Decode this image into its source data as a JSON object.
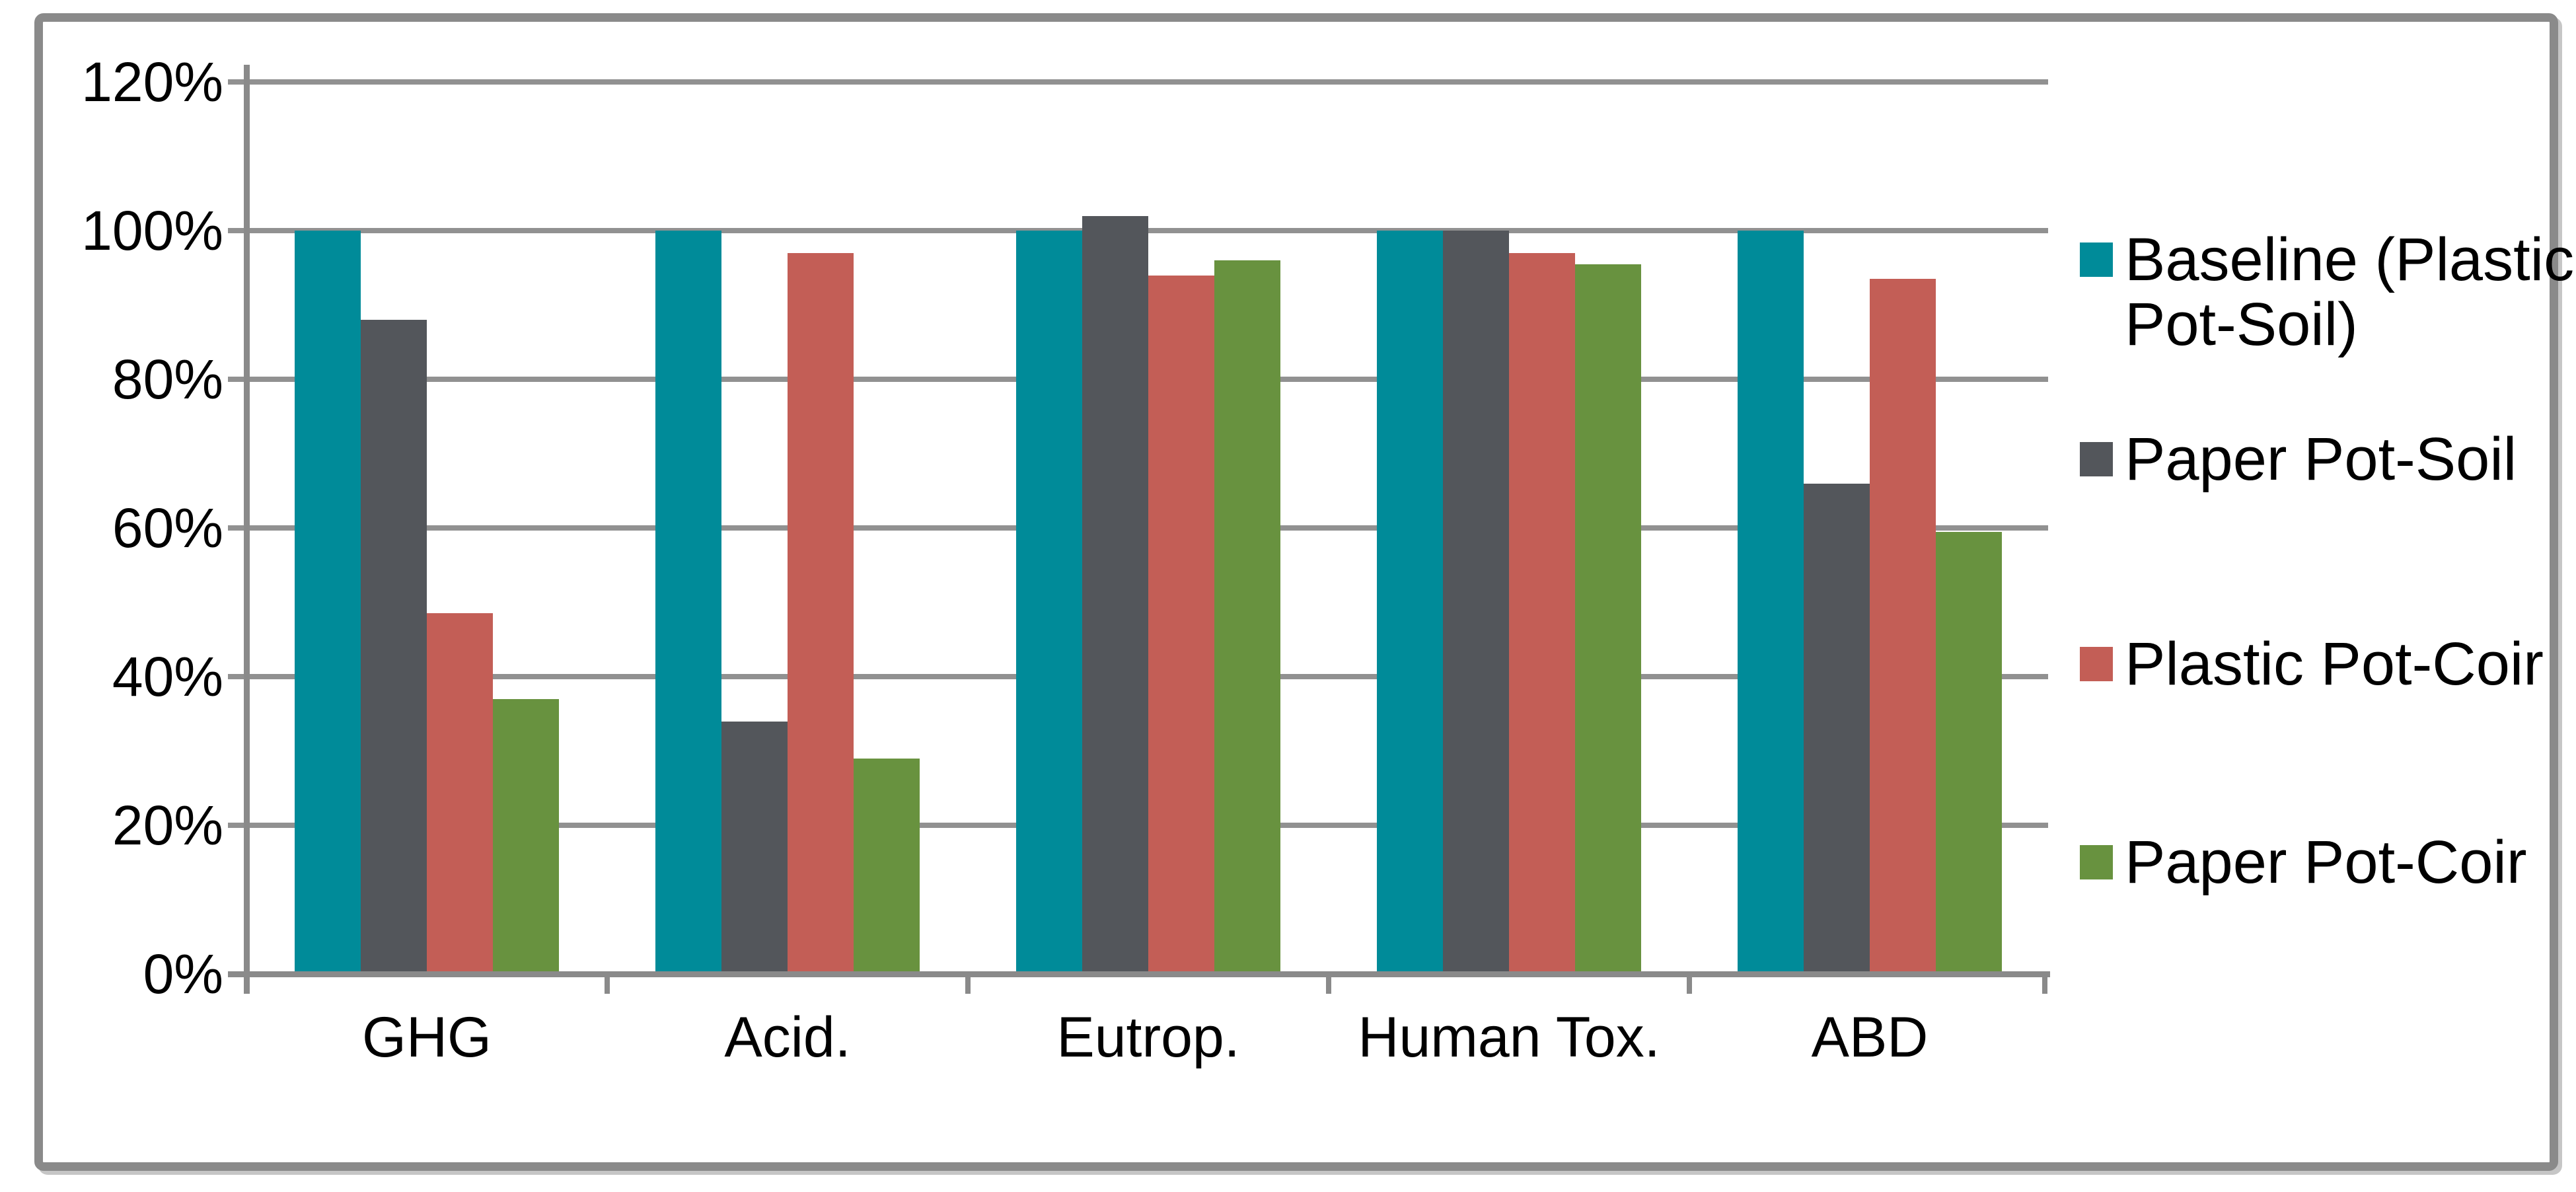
{
  "chart_data": {
    "type": "bar",
    "title": "",
    "xlabel": "",
    "ylabel": "",
    "categories": [
      "GHG",
      "Acid.",
      "Eutrop.",
      "Human Tox.",
      "ABD"
    ],
    "series": [
      {
        "name": "Baseline (Plastic Pot-Soil)",
        "color": "#008B99",
        "values": [
          100,
          100,
          100,
          100,
          100
        ]
      },
      {
        "name": "Paper Pot-Soil",
        "color": "#53565B",
        "values": [
          88,
          34,
          102,
          100,
          66
        ]
      },
      {
        "name": "Plastic Pot-Coir",
        "color": "#C35E56",
        "values": [
          48.5,
          97,
          94,
          97,
          93.5
        ]
      },
      {
        "name": "Paper Pot-Coir",
        "color": "#68923F",
        "values": [
          37,
          29,
          96,
          95.5,
          59.5
        ]
      }
    ],
    "ylim": [
      0,
      120
    ],
    "y_ticks": [
      {
        "value": 0,
        "label": "0%"
      },
      {
        "value": 20,
        "label": "20%"
      },
      {
        "value": 40,
        "label": "40%"
      },
      {
        "value": 60,
        "label": "60%"
      },
      {
        "value": 80,
        "label": "80%"
      },
      {
        "value": 100,
        "label": "100%"
      },
      {
        "value": 120,
        "label": "120%"
      }
    ],
    "grid": true,
    "legend_position": "right",
    "colors": {
      "gridline": "#919191",
      "axis": "#8A8A8A",
      "frame_border": "#8A8A8A",
      "text": "#000000",
      "background": "#FFFFFF"
    }
  }
}
